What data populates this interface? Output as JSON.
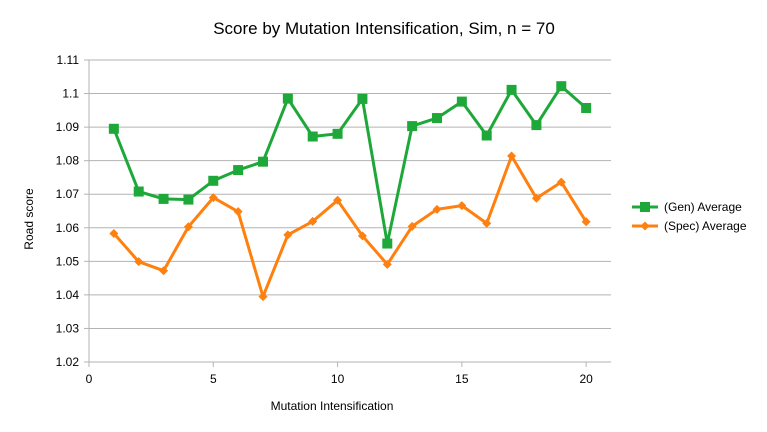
{
  "chart_data": {
    "type": "line",
    "title": "Score by Mutation Intensification, Sim, n = 70",
    "xlabel": "Mutation Intensification",
    "ylabel": "Road score",
    "xlim": [
      0,
      21
    ],
    "ylim": [
      1.02,
      1.11
    ],
    "x_ticks": [
      0,
      5,
      10,
      15,
      20
    ],
    "y_ticks": [
      1.02,
      1.03,
      1.04,
      1.05,
      1.06,
      1.07,
      1.08,
      1.09,
      1.1,
      1.11
    ],
    "x_tick_labels": [
      "0",
      "5",
      "10",
      "15",
      "20"
    ],
    "y_tick_labels": [
      "1.02",
      "1.03",
      "1.04",
      "1.05",
      "1.06",
      "1.07",
      "1.08",
      "1.09",
      "1.1",
      "1.11"
    ],
    "grid": true,
    "legend_position": "right",
    "x": [
      1,
      2,
      3,
      4,
      5,
      6,
      7,
      8,
      9,
      10,
      11,
      12,
      13,
      14,
      15,
      16,
      17,
      18,
      19,
      20
    ],
    "series": [
      {
        "name": "(Gen) Average",
        "color": "#1ea83a",
        "marker": "square",
        "values": [
          1.0895,
          1.0708,
          1.0686,
          1.0684,
          1.074,
          1.0772,
          1.0797,
          1.0985,
          1.0872,
          1.088,
          1.0984,
          1.0553,
          1.0903,
          1.0927,
          1.0976,
          1.0875,
          1.1011,
          1.0906,
          1.1022,
          1.0957
        ]
      },
      {
        "name": "(Spec) Average",
        "color": "#ff800e",
        "marker": "diamond",
        "values": [
          1.0583,
          1.0499,
          1.0472,
          1.0603,
          1.069,
          1.0648,
          1.0395,
          1.0579,
          1.0619,
          1.0682,
          1.0576,
          1.0491,
          1.0604,
          1.0655,
          1.0666,
          1.0613,
          1.0814,
          1.0688,
          1.0736,
          1.0618
        ]
      }
    ]
  }
}
